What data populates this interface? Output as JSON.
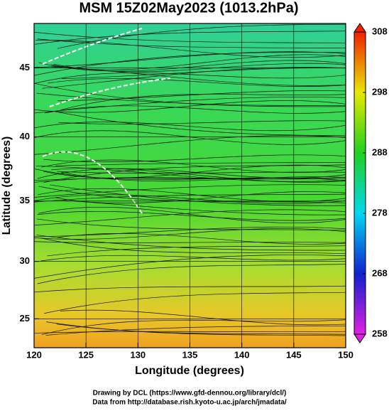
{
  "chart_data": {
    "type": "map",
    "title": "MSM 15Z02May2023 (1013.2hPa)",
    "x_label": "Longitude (degrees)",
    "y_label": "Latitude  (degrees)",
    "projection": "mercator",
    "xlim": [
      120,
      150
    ],
    "ylim": [
      22.4,
      48
    ],
    "xticks": [
      120,
      125,
      130,
      135,
      140,
      145,
      150
    ],
    "yticks": [
      25,
      30,
      35,
      40,
      45
    ],
    "grid": true,
    "colorbar": {
      "lim": [
        258,
        308
      ],
      "ticks": [
        258,
        268,
        278,
        288,
        298,
        308
      ],
      "colors": [
        "#e020e0",
        "#1020d0",
        "#00d8f0",
        "#20d020",
        "#e8e800",
        "#f02000"
      ]
    },
    "credits": [
      "Drawing by DCL (https://www.gfd-dennou.org/library/dcl/)",
      "Data from http://database.rish.kyoto-u.ac.jp/arch/jmadata/"
    ]
  }
}
